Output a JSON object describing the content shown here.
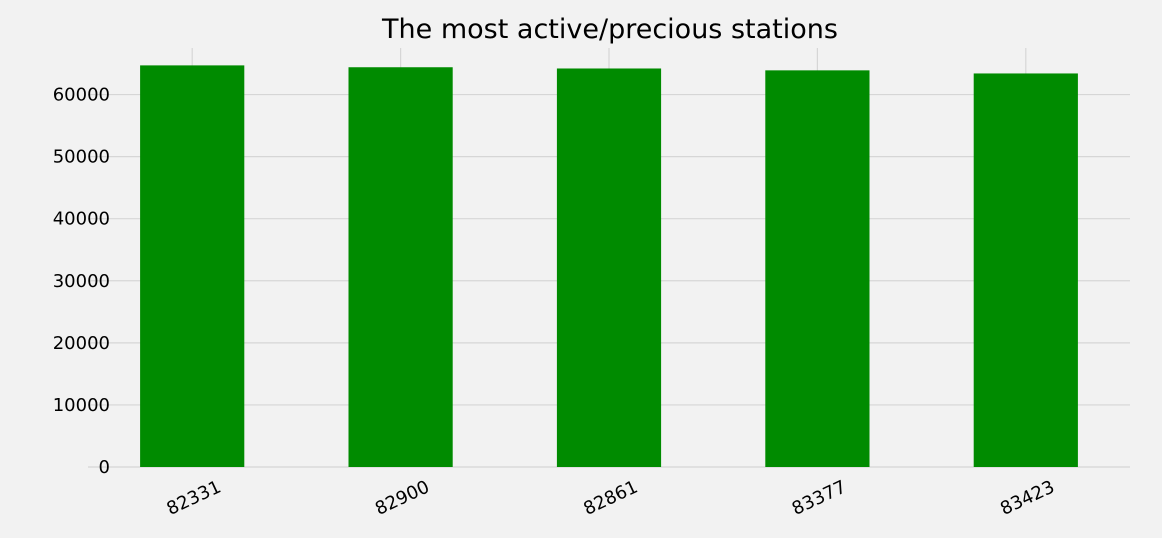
{
  "chart_data": {
    "type": "bar",
    "title": "The most active/precious stations",
    "xlabel": "",
    "ylabel": "",
    "categories": [
      "82331",
      "82900",
      "82861",
      "83377",
      "83423"
    ],
    "values": [
      64700,
      64400,
      64200,
      63900,
      63400
    ],
    "ylim": [
      0,
      67500
    ],
    "yticks": [
      0,
      10000,
      20000,
      30000,
      40000,
      50000,
      60000
    ],
    "grid": true,
    "legend": "none",
    "colors": {
      "bar": "#008b00",
      "background": "#f2f2f2",
      "grid": "#d6d6d6",
      "text": "#000000"
    }
  }
}
